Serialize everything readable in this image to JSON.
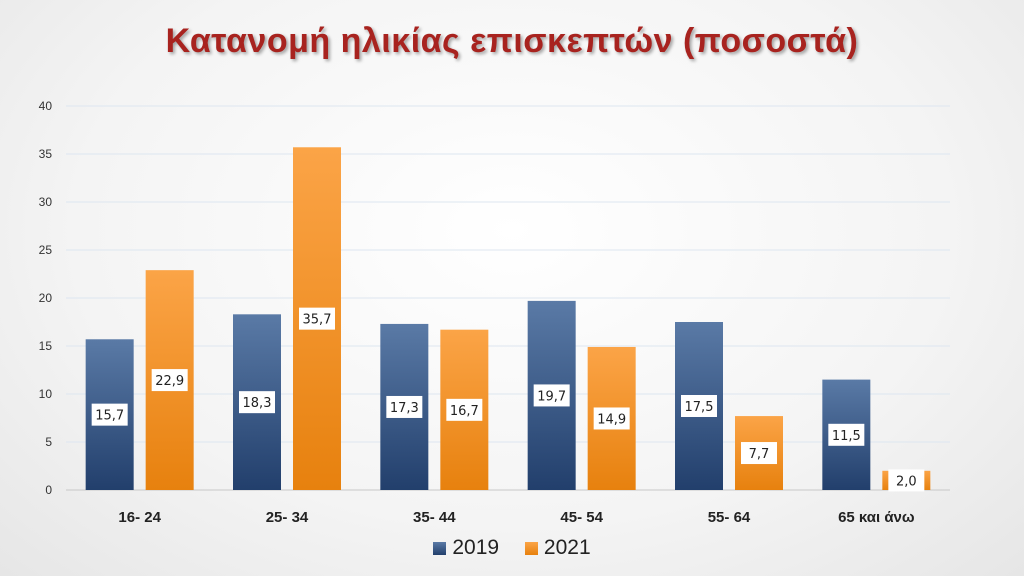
{
  "chart_data": {
    "type": "bar",
    "title": "Κατανομή ηλικίας επισκεπτών (ποσοστά)",
    "categories": [
      "16- 24",
      "25- 34",
      "35- 44",
      "45- 54",
      "55- 64",
      "65 και άνω"
    ],
    "series": [
      {
        "name": "2019",
        "values": [
          15.7,
          18.3,
          17.3,
          19.7,
          17.5,
          11.5
        ],
        "labels": [
          "15,7",
          "18,3",
          "17,3",
          "19,7",
          "17,5",
          "11,5"
        ],
        "color": "#2e4d7e"
      },
      {
        "name": "2021",
        "values": [
          22.9,
          35.7,
          16.7,
          14.9,
          7.7,
          2.0
        ],
        "labels": [
          "22,9",
          "35,7",
          "16,7",
          "14,9",
          "7,7",
          "2,0"
        ],
        "color": "#f18d1a"
      }
    ],
    "ylim": [
      0,
      40
    ],
    "yticks": [
      0,
      5,
      10,
      15,
      20,
      25,
      30,
      35,
      40
    ],
    "grid": true,
    "legend": "bottom-center"
  }
}
